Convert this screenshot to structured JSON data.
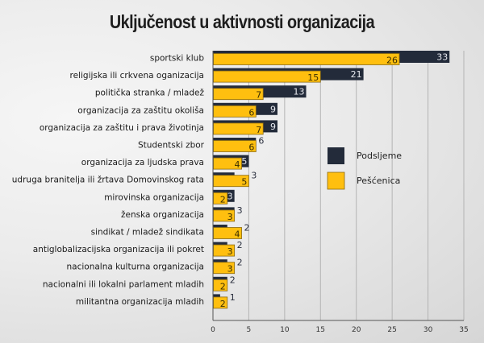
{
  "chart_data": {
    "type": "bar",
    "orientation": "horizontal",
    "title": "Uključenost u aktivnosti organizacija",
    "xlabel": "",
    "ylabel": "",
    "xlim": [
      0,
      35
    ],
    "xticks": [
      0,
      5,
      10,
      15,
      20,
      25,
      30,
      35
    ],
    "grid": true,
    "legend_position": "right-middle",
    "categories": [
      "sportski klub",
      "religijska ili crkvena oganizacija",
      "politička stranka / mladež",
      "organizacija za zaštitu okoliša",
      "organizacija za zaštitu i prava životinja",
      "Studentski zbor",
      "organizacija za ljudska prava",
      "udruga branitelja ili žrtava Domovinskog rata",
      "mirovinska organizacija",
      "ženska organizacija",
      "sindikat / mladež sindikata",
      "antiglobalizacijska organizacija ili pokret",
      "nacionalna kulturna organizacija",
      "nacionalni ili lokalni parlament mladih",
      "militantna organizacija mladih"
    ],
    "series": [
      {
        "name": "Podsljeme",
        "color": "#232b3a",
        "label_color": "#e8eaf0",
        "values": [
          33,
          21,
          13,
          9,
          9,
          6,
          5,
          3,
          3,
          3,
          2,
          2,
          2,
          2,
          1
        ]
      },
      {
        "name": "Pešćenica",
        "color": "#ffbf0f",
        "label_color": "#3a2e00",
        "values": [
          26,
          15,
          7,
          6,
          7,
          6,
          4,
          5,
          2,
          3,
          4,
          3,
          3,
          2,
          2
        ]
      }
    ]
  }
}
